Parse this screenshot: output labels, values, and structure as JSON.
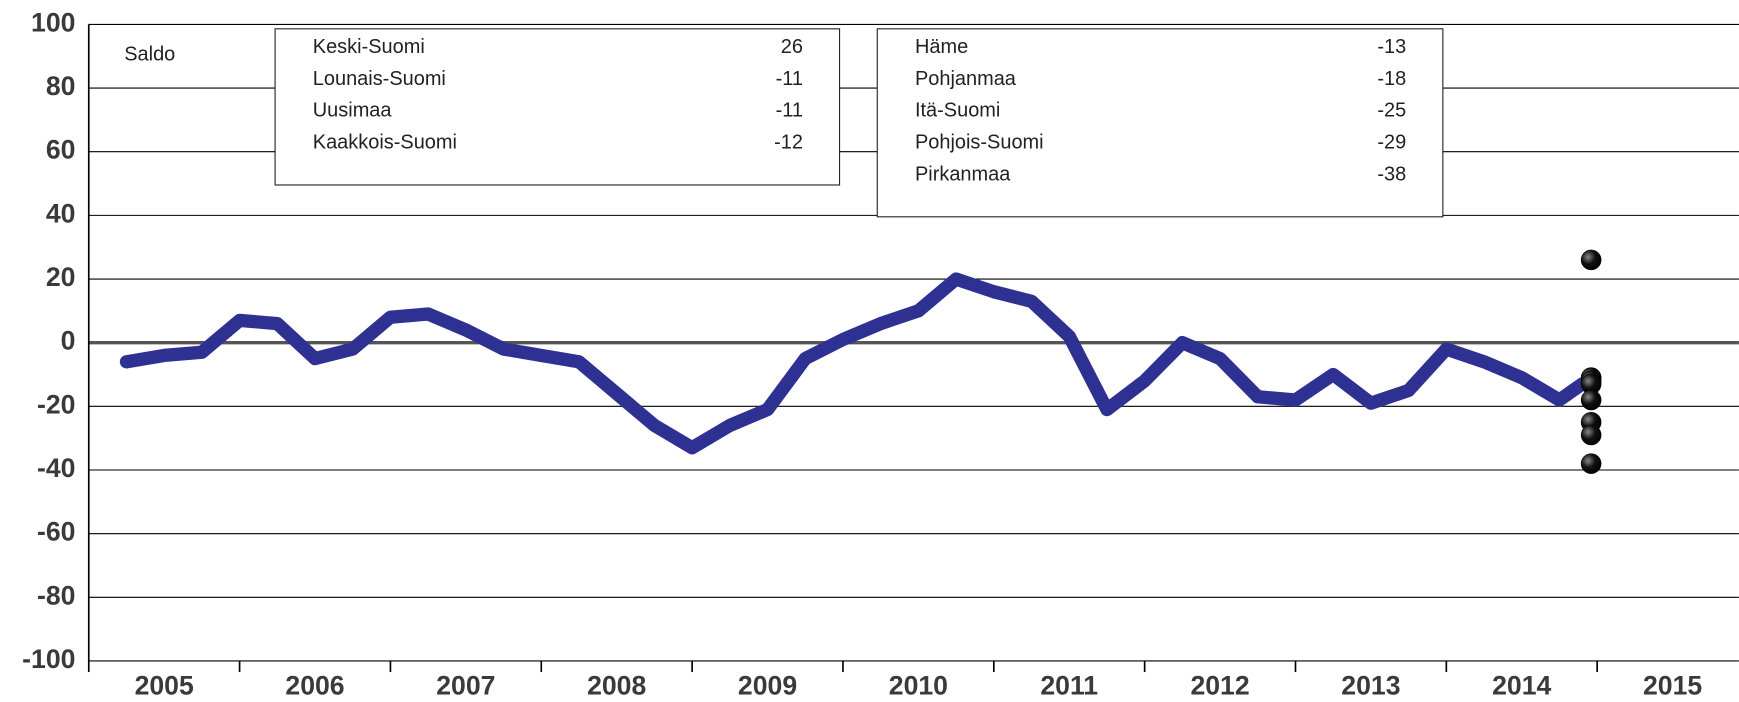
{
  "chart_data": {
    "type": "line",
    "label": "Saldo",
    "ylim": [
      -100,
      100
    ],
    "yticks": [
      -100,
      -80,
      -60,
      -40,
      -20,
      0,
      20,
      40,
      60,
      80,
      100
    ],
    "xlim": [
      2005,
      2015.94
    ],
    "xticks": [
      2005,
      2006,
      2007,
      2008,
      2009,
      2010,
      2011,
      2012,
      2013,
      2014,
      2015
    ],
    "grid": true,
    "color": "#2e3192",
    "x": [
      2005.25,
      2005.5,
      2005.75,
      2006,
      2006.25,
      2006.5,
      2006.75,
      2007,
      2007.25,
      2007.5,
      2007.75,
      2008,
      2008.25,
      2008.5,
      2008.75,
      2009,
      2009.25,
      2009.5,
      2009.75,
      2010,
      2010.25,
      2010.5,
      2010.75,
      2011,
      2011.25,
      2011.5,
      2011.75,
      2012,
      2012.25,
      2012.5,
      2012.75,
      2013,
      2013.25,
      2013.5,
      2013.75,
      2014,
      2014.25,
      2014.5,
      2014.75,
      2014.9
    ],
    "values": [
      -6,
      -4,
      -3,
      7,
      6,
      -5,
      -2,
      8,
      9,
      4,
      -2,
      -4,
      -6,
      -16,
      -26,
      -33,
      -26,
      -21,
      -5,
      1,
      6,
      10,
      20,
      16,
      13,
      2,
      -21,
      -12,
      0,
      -5,
      -17,
      -18,
      -10,
      -19,
      -15,
      -2,
      -6,
      -11,
      -18,
      -13
    ],
    "markers": {
      "color": "#000000",
      "x": 2014.96,
      "points": [
        {
          "name": "Keski-Suomi",
          "value": 26
        },
        {
          "name": "Lounais-Suomi",
          "value": -11
        },
        {
          "name": "Uusimaa",
          "value": -11
        },
        {
          "name": "Kaakkois-Suomi",
          "value": -12
        },
        {
          "name": "Häme",
          "value": -13
        },
        {
          "name": "Pohjanmaa",
          "value": -18
        },
        {
          "name": "Itä-Suomi",
          "value": -25
        },
        {
          "name": "Pohjois-Suomi",
          "value": -29
        },
        {
          "name": "Pirkanmaa",
          "value": -38
        }
      ]
    }
  }
}
